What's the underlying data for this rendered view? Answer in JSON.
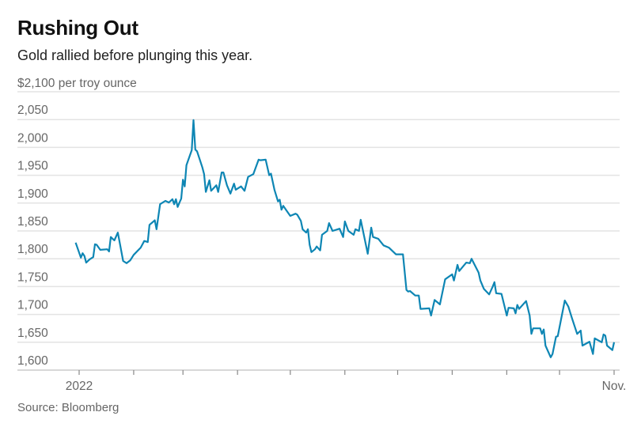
{
  "chart_data": {
    "type": "line",
    "title": "Rushing Out",
    "subtitle": "Gold rallied before plunging this year.",
    "unit_label": "$2,100 per troy ounce",
    "source": "Source: Bloomberg",
    "ylim": [
      1600,
      2100
    ],
    "yticks": [
      2100,
      2050,
      2000,
      1950,
      1900,
      1850,
      1800,
      1750,
      1700,
      1650,
      1600
    ],
    "ytick_labels": [
      "",
      "2,050",
      "2,000",
      "1,950",
      "1,900",
      "1,850",
      "1,800",
      "1,750",
      "1,700",
      "1,650",
      "1,600"
    ],
    "xlim": [
      "2022-01-01",
      "2022-11-01"
    ],
    "xticks": [
      "2022-01-01",
      "2022-02-01",
      "2022-03-01",
      "2022-04-01",
      "2022-05-01",
      "2022-06-01",
      "2022-07-01",
      "2022-08-01",
      "2022-09-01",
      "2022-10-01",
      "2022-11-01"
    ],
    "xtick_labels": [
      "2022",
      "",
      "",
      "",
      "",
      "",
      "",
      "",
      "",
      "",
      "Nov."
    ],
    "grid": true,
    "line_color": "#0e86b4",
    "series": [
      {
        "x": [
          "2021-12-30",
          "2022-01-02",
          "2022-01-03",
          "2022-01-04",
          "2022-01-05",
          "2022-01-07",
          "2022-01-09",
          "2022-01-10",
          "2022-01-11",
          "2022-01-13",
          "2022-01-17",
          "2022-01-18",
          "2022-01-19",
          "2022-01-20",
          "2022-01-21",
          "2022-01-23",
          "2022-01-26",
          "2022-01-28",
          "2022-01-30",
          "2022-02-01",
          "2022-02-05",
          "2022-02-07",
          "2022-02-09",
          "2022-02-10",
          "2022-02-13",
          "2022-02-14",
          "2022-02-16",
          "2022-02-19",
          "2022-02-21",
          "2022-02-23",
          "2022-02-24",
          "2022-02-25",
          "2022-02-26",
          "2022-02-27",
          "2022-02-28",
          "2022-03-01",
          "2022-03-02",
          "2022-03-03",
          "2022-03-06",
          "2022-03-07",
          "2022-03-08",
          "2022-03-09",
          "2022-03-12",
          "2022-03-13",
          "2022-03-14",
          "2022-03-16",
          "2022-03-17",
          "2022-03-20",
          "2022-03-21",
          "2022-03-23",
          "2022-03-24",
          "2022-03-26",
          "2022-03-28",
          "2022-03-30",
          "2022-03-31",
          "2022-04-03",
          "2022-04-05",
          "2022-04-07",
          "2022-04-10",
          "2022-04-13",
          "2022-04-14",
          "2022-04-17",
          "2022-04-19",
          "2022-04-20",
          "2022-04-22",
          "2022-04-24",
          "2022-04-25",
          "2022-04-26",
          "2022-04-27",
          "2022-04-29",
          "2022-05-01",
          "2022-05-04",
          "2022-05-05",
          "2022-05-07",
          "2022-05-08",
          "2022-05-10",
          "2022-05-11",
          "2022-05-12",
          "2022-05-13",
          "2022-05-15",
          "2022-05-16",
          "2022-05-18",
          "2022-05-19",
          "2022-05-22",
          "2022-05-23",
          "2022-05-25",
          "2022-05-29",
          "2022-05-31",
          "2022-06-01",
          "2022-06-03",
          "2022-06-06",
          "2022-06-07",
          "2022-06-09",
          "2022-06-10",
          "2022-06-14",
          "2022-06-16",
          "2022-06-17",
          "2022-06-20",
          "2022-06-23",
          "2022-06-26",
          "2022-06-30",
          "2022-07-04",
          "2022-07-06",
          "2022-07-07",
          "2022-07-08",
          "2022-07-11",
          "2022-07-13",
          "2022-07-14",
          "2022-07-19",
          "2022-07-20",
          "2022-07-22",
          "2022-07-25",
          "2022-07-28",
          "2022-08-01",
          "2022-08-02",
          "2022-08-04",
          "2022-08-05",
          "2022-08-09",
          "2022-08-11",
          "2022-08-12",
          "2022-08-16",
          "2022-08-17",
          "2022-08-19",
          "2022-08-22",
          "2022-08-24",
          "2022-08-25",
          "2022-08-26",
          "2022-08-29",
          "2022-09-01",
          "2022-09-02",
          "2022-09-05",
          "2022-09-06",
          "2022-09-07",
          "2022-09-08",
          "2022-09-12",
          "2022-09-14",
          "2022-09-15",
          "2022-09-16",
          "2022-09-20",
          "2022-09-21",
          "2022-09-22",
          "2022-09-23",
          "2022-09-26",
          "2022-09-27",
          "2022-09-29",
          "2022-09-30",
          "2022-10-04",
          "2022-10-06",
          "2022-10-08",
          "2022-10-11",
          "2022-10-13",
          "2022-10-14",
          "2022-10-18",
          "2022-10-20",
          "2022-10-21",
          "2022-10-25",
          "2022-10-26",
          "2022-10-27",
          "2022-10-28",
          "2022-10-31",
          "2022-11-01"
        ],
        "values": [
          1829,
          1802,
          1810,
          1805,
          1793,
          1799,
          1803,
          1826,
          1825,
          1816,
          1817,
          1813,
          1839,
          1836,
          1833,
          1847,
          1796,
          1792,
          1797,
          1807,
          1820,
          1832,
          1830,
          1861,
          1869,
          1853,
          1898,
          1904,
          1901,
          1907,
          1898,
          1907,
          1893,
          1901,
          1908,
          1942,
          1930,
          1968,
          1995,
          2049,
          1996,
          1993,
          1964,
          1952,
          1920,
          1941,
          1922,
          1932,
          1920,
          1955,
          1955,
          1932,
          1917,
          1935,
          1924,
          1930,
          1922,
          1947,
          1952,
          1978,
          1977,
          1978,
          1950,
          1953,
          1924,
          1903,
          1906,
          1888,
          1895,
          1886,
          1877,
          1881,
          1879,
          1868,
          1853,
          1847,
          1853,
          1825,
          1812,
          1817,
          1822,
          1815,
          1843,
          1850,
          1864,
          1850,
          1854,
          1839,
          1867,
          1850,
          1843,
          1853,
          1850,
          1870,
          1809,
          1856,
          1839,
          1836,
          1824,
          1820,
          1808,
          1808,
          1744,
          1741,
          1742,
          1734,
          1734,
          1710,
          1711,
          1698,
          1726,
          1718,
          1763,
          1772,
          1761,
          1789,
          1778,
          1793,
          1792,
          1800,
          1775,
          1761,
          1746,
          1736,
          1750,
          1758,
          1738,
          1737,
          1698,
          1712,
          1711,
          1702,
          1717,
          1710,
          1724,
          1698,
          1665,
          1675,
          1675,
          1665,
          1673,
          1644,
          1623,
          1629,
          1660,
          1661,
          1725,
          1714,
          1694,
          1665,
          1671,
          1644,
          1651,
          1629,
          1657,
          1650,
          1664,
          1662,
          1644,
          1636,
          1650
        ]
      }
    ]
  }
}
